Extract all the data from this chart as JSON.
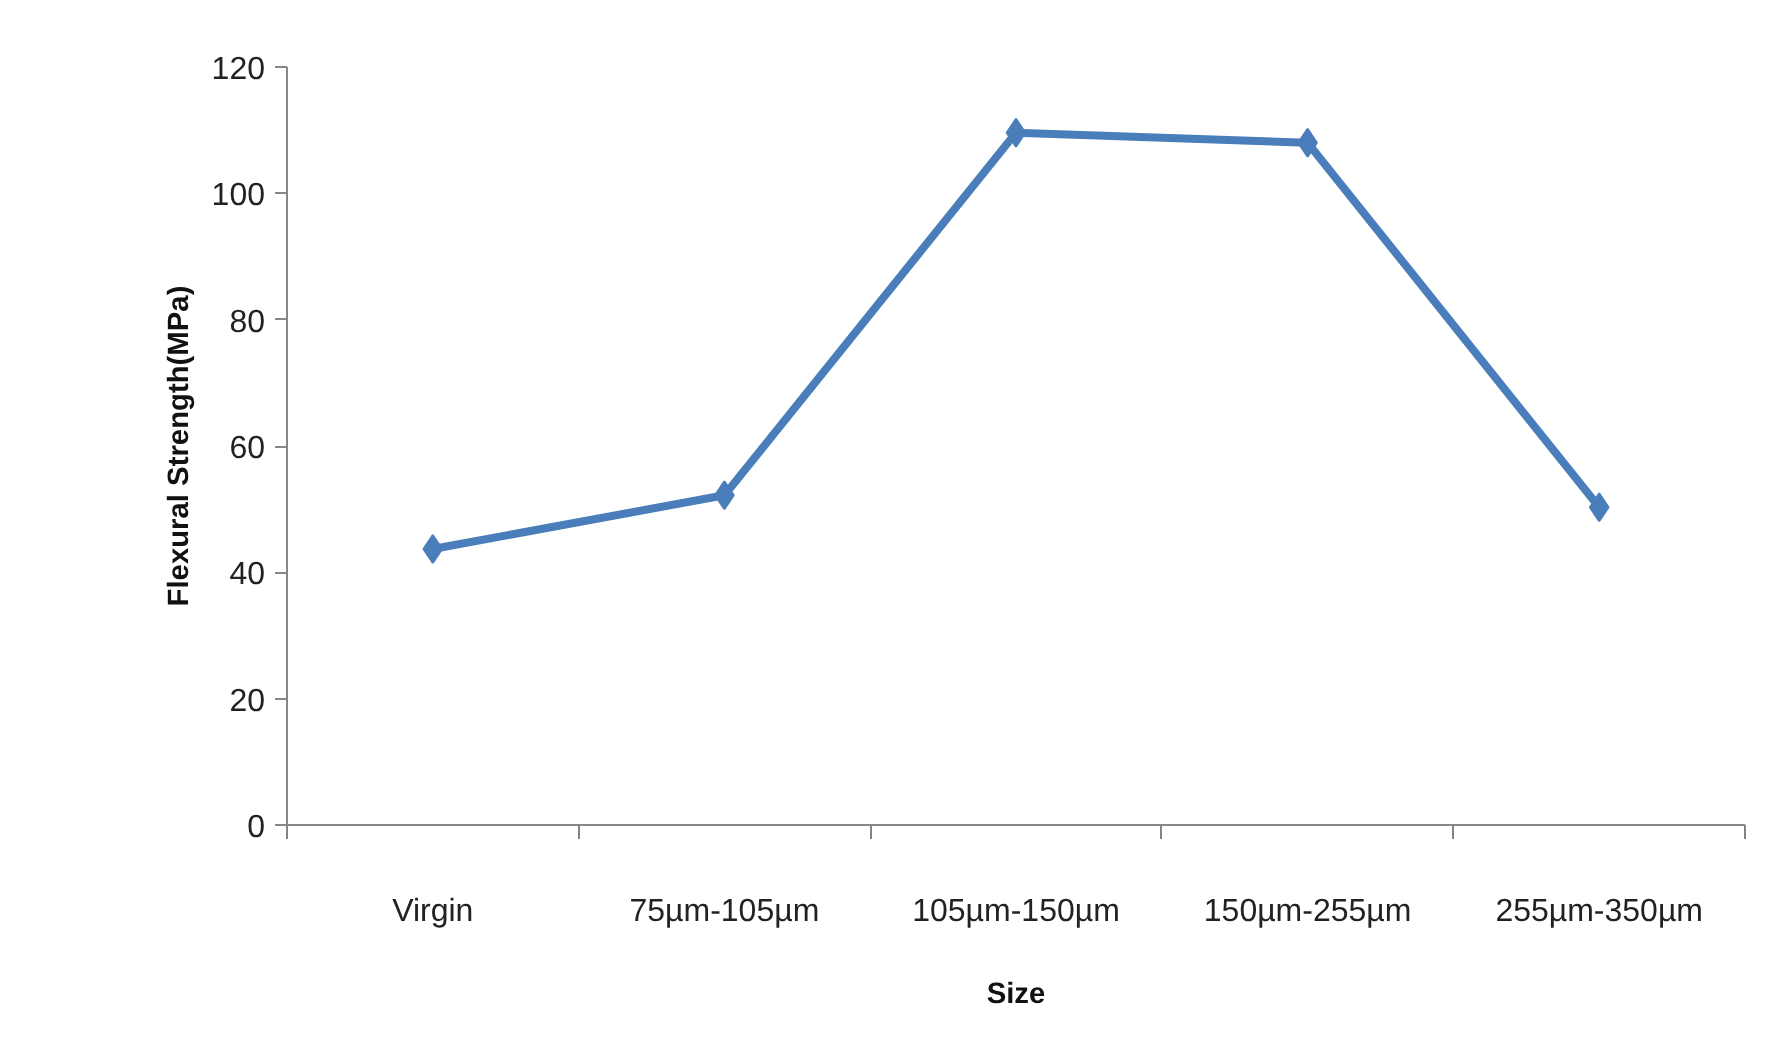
{
  "chart_data": {
    "type": "line",
    "xlabel": "Size",
    "ylabel": "Flexural Strength(MPa)",
    "categories": [
      "Virgin",
      "75µm-105µm",
      "105µm-150µm",
      "150µm-255µm",
      "255µm-350µm"
    ],
    "series": [
      {
        "color": "#4a7ebb",
        "values": [
          43.7,
          52.2,
          109.6,
          108,
          50.3
        ]
      }
    ],
    "ylim": [
      0,
      120
    ],
    "yticks": [
      0,
      20,
      40,
      60,
      80,
      100,
      120
    ],
    "grid": false,
    "marker": "diamond",
    "line_style": "solid"
  }
}
